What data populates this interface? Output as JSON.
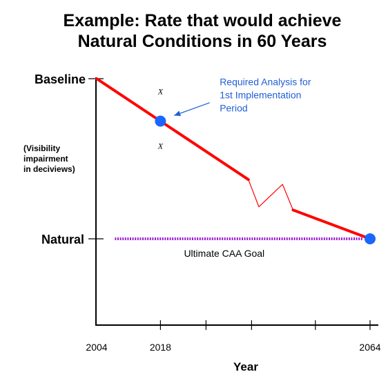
{
  "chart_data": {
    "type": "line",
    "title_lines": [
      "Example:  Rate that would achieve",
      "Natural Conditions in 60 Years"
    ],
    "xlabel": "Year",
    "ylabel_lines": [
      "(Visibility",
      "impairment",
      "in deciviews)"
    ],
    "y_levels": [
      {
        "label": "Baseline",
        "value": 1
      },
      {
        "label": "Natural",
        "value": 0
      }
    ],
    "xlim": [
      2004,
      2064
    ],
    "ylim": [
      -0.75,
      1.15
    ],
    "x_tick_labels": [
      {
        "x": 2004,
        "label": "2004"
      },
      {
        "x": 2018,
        "label": "2018"
      },
      {
        "x": 2064,
        "label": "2064"
      }
    ],
    "x_ticks_unlabeled": [
      2028,
      2038,
      2052
    ],
    "series": [
      {
        "color": "#ff0000",
        "segments": [
          {
            "points": [
              [
                2004,
                1.0
              ],
              [
                2037.3,
                0.37
              ]
            ],
            "width": "thick"
          },
          {
            "points": [
              [
                2037.3,
                0.37
              ],
              [
                2039.6,
                0.2
              ],
              [
                2044.8,
                0.34
              ],
              [
                2047.1,
                0.18
              ]
            ],
            "width": "thin"
          },
          {
            "points": [
              [
                2047.1,
                0.18
              ],
              [
                2064,
                0.0
              ]
            ],
            "width": "thick"
          }
        ]
      }
    ],
    "points": [
      {
        "x": 2018,
        "y": 0.735,
        "color": "#1a66ff"
      },
      {
        "x": 2064,
        "y": 0.0,
        "color": "#1a66ff"
      }
    ],
    "goal_line": {
      "y": 0.0,
      "x_start": 2008,
      "x_end": 2062.5,
      "color": "#9b1fd0",
      "label": "Ultimate CAA Goal",
      "label_x": 2032,
      "label_y": -0.09
    },
    "annotations": [
      {
        "lines": [
          "Required Analysis for",
          "1st Implementation",
          "Period"
        ],
        "x": 2031,
        "y": 0.98,
        "color": "#1f5fd6"
      }
    ],
    "x_marks": [
      {
        "text": "X",
        "x": 2018,
        "y": 0.92
      },
      {
        "text": "X",
        "x": 2018,
        "y": 0.58
      }
    ],
    "arrow": {
      "from": [
        2028.8,
        0.85
      ],
      "to": [
        2021,
        0.77
      ],
      "color": "#1f5fd6"
    }
  }
}
